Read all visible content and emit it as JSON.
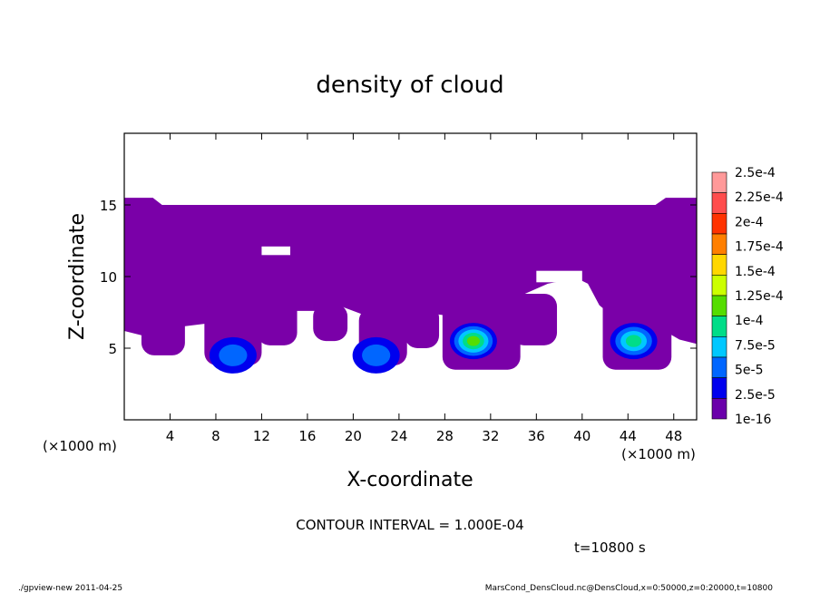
{
  "chart_data": {
    "type": "heatmap",
    "title": "density of cloud",
    "xlabel": "X-coordinate",
    "ylabel": "Z-coordinate",
    "x_unit_left": "(×1000 m)",
    "x_unit_right": "(×1000 m)",
    "xlim": [
      0,
      50
    ],
    "ylim": [
      0,
      20
    ],
    "x_ticks": [
      4,
      8,
      12,
      16,
      20,
      24,
      28,
      32,
      36,
      40,
      44,
      48
    ],
    "y_ticks": [
      5,
      10,
      15
    ],
    "colorbar": {
      "labels": [
        "2.5e-4",
        "2.25e-4",
        "2e-4",
        "1.75e-4",
        "1.5e-4",
        "1.25e-4",
        "1e-4",
        "7.5e-5",
        "5e-5",
        "2.5e-5",
        "1e-16"
      ],
      "levels": [
        0.00025,
        0.000225,
        0.0002,
        0.000175,
        0.00015,
        0.000125,
        0.0001,
        7.5e-05,
        5e-05,
        2.5e-05,
        1e-16
      ],
      "colors": [
        "#ff9999",
        "#ff4d4d",
        "#ff3300",
        "#ff7f00",
        "#ffd700",
        "#ccff00",
        "#55dd00",
        "#00dd88",
        "#00c8ff",
        "#0066ff",
        "#0000ee",
        "#6a00aa"
      ]
    },
    "field": {
      "base_color": "#7a00a8",
      "cloud_layer_z": [
        3.5,
        15.5
      ],
      "hotspots": [
        {
          "x": 30.5,
          "z": 5.5,
          "level": 0.0001
        },
        {
          "x": 44.5,
          "z": 5.5,
          "level": 7.5e-05
        },
        {
          "x": 22.0,
          "z": 4.5,
          "level": 2.5e-05
        },
        {
          "x": 9.5,
          "z": 4.5,
          "level": 2.5e-05
        }
      ]
    },
    "contour_interval": "CONTOUR INTERVAL = 1.000E-04",
    "time": "t=10800 s"
  },
  "footer": {
    "left": "./gpview-new  2011-04-25",
    "right": "MarsCond_DensCloud.nc@DensCloud,x=0:50000,z=0:20000,t=10800"
  }
}
